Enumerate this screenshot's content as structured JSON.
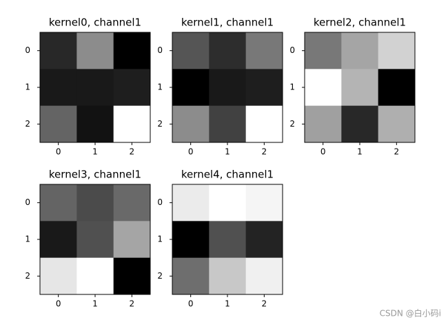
{
  "chart_data": [
    {
      "type": "heatmap",
      "title": "kernel0, channel1",
      "cmap": "gray",
      "color_range": [
        0,
        255
      ],
      "xticks": [
        0,
        1,
        2
      ],
      "yticks": [
        0,
        1,
        2
      ],
      "xlim": [
        -0.5,
        2.5
      ],
      "ylim": [
        2.5,
        -0.5
      ],
      "values": [
        [
          40,
          140,
          0
        ],
        [
          25,
          25,
          30
        ],
        [
          100,
          18,
          255
        ]
      ]
    },
    {
      "type": "heatmap",
      "title": "kernel1, channel1",
      "cmap": "gray",
      "color_range": [
        0,
        255
      ],
      "xticks": [
        0,
        1,
        2
      ],
      "yticks": [
        0,
        1,
        2
      ],
      "xlim": [
        -0.5,
        2.5
      ],
      "ylim": [
        2.5,
        -0.5
      ],
      "values": [
        [
          85,
          45,
          120
        ],
        [
          0,
          25,
          30
        ],
        [
          140,
          65,
          255
        ]
      ]
    },
    {
      "type": "heatmap",
      "title": "kernel2, channel1",
      "cmap": "gray",
      "color_range": [
        0,
        255
      ],
      "xticks": [
        0,
        1,
        2
      ],
      "yticks": [
        0,
        1,
        2
      ],
      "xlim": [
        -0.5,
        2.5
      ],
      "ylim": [
        2.5,
        -0.5
      ],
      "values": [
        [
          120,
          165,
          210
        ],
        [
          255,
          180,
          0
        ],
        [
          160,
          40,
          175
        ]
      ]
    },
    {
      "type": "heatmap",
      "title": "kernel3, channel1",
      "cmap": "gray",
      "color_range": [
        0,
        255
      ],
      "xticks": [
        0,
        1,
        2
      ],
      "yticks": [
        0,
        1,
        2
      ],
      "xlim": [
        -0.5,
        2.5
      ],
      "ylim": [
        2.5,
        -0.5
      ],
      "values": [
        [
          100,
          75,
          105
        ],
        [
          25,
          80,
          165
        ],
        [
          230,
          255,
          0
        ]
      ]
    },
    {
      "type": "heatmap",
      "title": "kernel4, channel1",
      "cmap": "gray",
      "color_range": [
        0,
        255
      ],
      "xticks": [
        0,
        1,
        2
      ],
      "yticks": [
        0,
        1,
        2
      ],
      "xlim": [
        -0.5,
        2.5
      ],
      "ylim": [
        2.5,
        -0.5
      ],
      "values": [
        [
          235,
          255,
          245
        ],
        [
          0,
          80,
          35
        ],
        [
          110,
          200,
          240
        ]
      ]
    }
  ],
  "watermark": "CSDN @白小码i"
}
